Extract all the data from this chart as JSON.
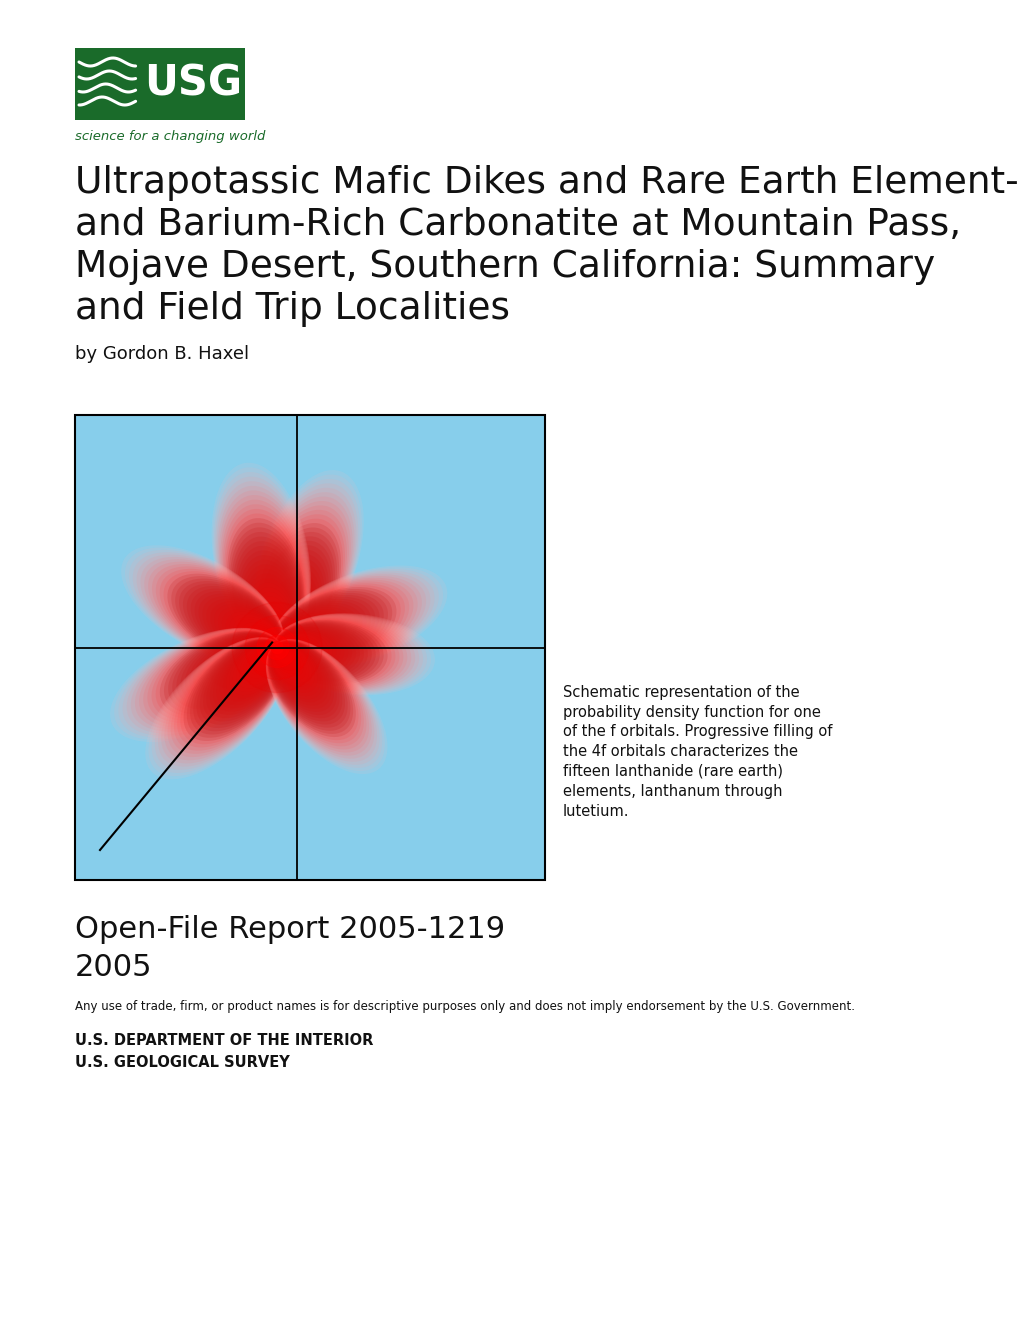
{
  "title_line1": "Ultrapotassic Mafic Dikes and Rare Earth Element-",
  "title_line2": "and Barium-Rich Carbonatite at Mountain Pass,",
  "title_line3": "Mojave Desert, Southern California: Summary",
  "title_line4": "and Field Trip Localities",
  "author": "by Gordon B. Haxel",
  "report_line1": "Open-File Report 2005-1219",
  "report_line2": "2005",
  "disclaimer": "Any use of trade, firm, or product names is for descriptive purposes only and does not imply endorsement by the U.S. Government.",
  "dept_line1": "U.S. DEPARTMENT OF THE INTERIOR",
  "dept_line2": "U.S. GEOLOGICAL SURVEY",
  "caption": "Schematic representation of the\nprobability density function for one\nof the f orbitals. Progressive filling of\nthe 4f orbitals characterizes the\nfifteen lanthanide (rare earth)\nelements, lanthanum through\nlutetium.",
  "bg_color": "#ffffff",
  "box_bg": "#87ceeb",
  "usgs_green": "#1a6b2a",
  "title_fontsize": 27,
  "author_fontsize": 13,
  "report_fontsize": 22,
  "caption_fontsize": 10.5
}
